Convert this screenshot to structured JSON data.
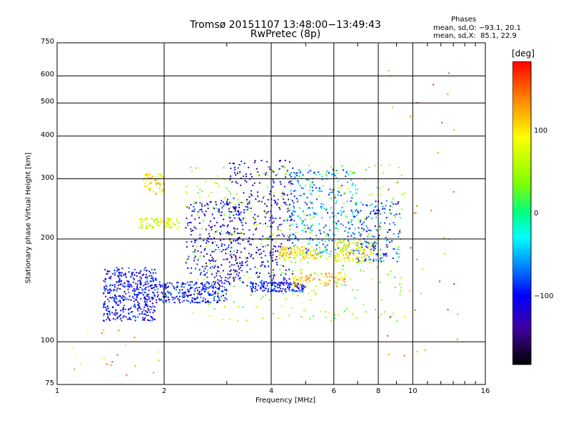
{
  "chart_data": {
    "type": "scatter",
    "title": "Tromsø 20151107 13:48:00−13:49:43",
    "subtitle": "RwPretec (8p)",
    "xlabel": "Frequency [MHz]",
    "ylabel": "Stationary phase Virtual Height [km]",
    "xscale": "log",
    "yscale": "log",
    "xlim": [
      1,
      16
    ],
    "ylim": [
      75,
      750
    ],
    "x_ticks": [
      1,
      2,
      4,
      6,
      8,
      10,
      16
    ],
    "x_tick_labels": [
      "1",
      "2",
      "4",
      "6",
      "8",
      "10",
      "16"
    ],
    "y_ticks": [
      75,
      100,
      200,
      300,
      400,
      500,
      600,
      750
    ],
    "y_tick_labels": [
      "75",
      "100",
      "200",
      "300",
      "400",
      "500",
      "600",
      "750"
    ],
    "grid": true,
    "phases_box": {
      "title": "Phases",
      "line1": "mean, sd,O: −93.1, 20.1",
      "line2": "mean, sd,X:  85.1, 22.9"
    },
    "colorbar": {
      "label": "[deg]",
      "range": [
        -180,
        180
      ],
      "ticks": [
        100,
        0,
        -100
      ],
      "tick_labels": [
        "100",
        "0",
        "−100"
      ]
    },
    "clusters": [
      {
        "x": [
          1.35,
          1.9
        ],
        "y": [
          115,
          165
        ],
        "phase": -100,
        "n": 420
      },
      {
        "x": [
          1.9,
          3.0
        ],
        "y": [
          130,
          150
        ],
        "phase": -95,
        "n": 260
      },
      {
        "x": [
          1.7,
          2.2
        ],
        "y": [
          215,
          230
        ],
        "phase": 70,
        "n": 90
      },
      {
        "x": [
          1.75,
          2.0
        ],
        "y": [
          270,
          310
        ],
        "phase": 100,
        "n": 60
      },
      {
        "x": [
          2.3,
          3.3
        ],
        "y": [
          150,
          260
        ],
        "phase": -110,
        "n": 240
      },
      {
        "x": [
          3.0,
          4.6
        ],
        "y": [
          145,
          340
        ],
        "phase": -115,
        "n": 360
      },
      {
        "x": [
          3.5,
          5.0
        ],
        "y": [
          140,
          150
        ],
        "phase": -95,
        "n": 140
      },
      {
        "x": [
          4.2,
          5.5
        ],
        "y": [
          175,
          190
        ],
        "phase": 95,
        "n": 120
      },
      {
        "x": [
          4.6,
          6.5
        ],
        "y": [
          145,
          160
        ],
        "phase": 110,
        "n": 90
      },
      {
        "x": [
          4.5,
          7.0
        ],
        "y": [
          180,
          320
        ],
        "phase": -60,
        "n": 300
      },
      {
        "x": [
          6.0,
          7.8
        ],
        "y": [
          170,
          200
        ],
        "phase": 90,
        "n": 140
      },
      {
        "x": [
          7.0,
          9.2
        ],
        "y": [
          170,
          260
        ],
        "phase": -80,
        "n": 160
      },
      {
        "x": [
          2.3,
          9.5
        ],
        "y": [
          115,
          330
        ],
        "phase": 40,
        "n": 380
      },
      {
        "x": [
          8.5,
          13.5
        ],
        "y": [
          90,
          650
        ],
        "phase": 140,
        "n": 40
      },
      {
        "x": [
          1.1,
          2.0
        ],
        "y": [
          80,
          110
        ],
        "phase": 120,
        "n": 20
      }
    ]
  }
}
